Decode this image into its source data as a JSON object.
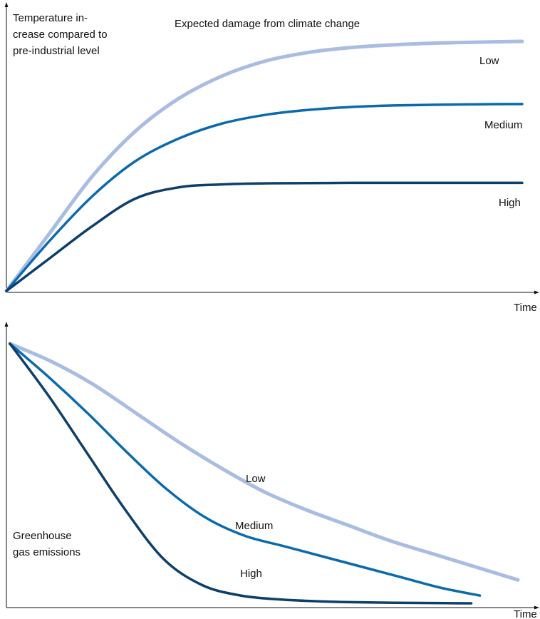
{
  "chart_data": [
    {
      "type": "line",
      "title": "Expected damage from climate change",
      "ylabel_lines": [
        "Temperature in-",
        "crease compared to",
        "pre-industrial level"
      ],
      "xlabel": "Time",
      "grid": false,
      "x": [
        0,
        1,
        2,
        3,
        4,
        5,
        6,
        7,
        8,
        9,
        10,
        11,
        12
      ],
      "series": [
        {
          "name": "Low",
          "color": "#a9bde3",
          "width": 5,
          "values": [
            0,
            0.23,
            0.46,
            0.64,
            0.77,
            0.86,
            0.92,
            0.955,
            0.975,
            0.986,
            0.993,
            0.997,
            1.0
          ]
        },
        {
          "name": "Medium",
          "color": "#0a6aad",
          "width": 3.5,
          "values": [
            0,
            0.2,
            0.38,
            0.52,
            0.61,
            0.67,
            0.705,
            0.725,
            0.737,
            0.743,
            0.746,
            0.748,
            0.749
          ]
        },
        {
          "name": "High",
          "color": "#0d3f6b",
          "width": 3.5,
          "values": [
            0,
            0.13,
            0.26,
            0.37,
            0.415,
            0.427,
            0.431,
            0.432,
            0.433,
            0.433,
            0.433,
            0.433,
            0.433
          ]
        }
      ]
    },
    {
      "type": "line",
      "title": "",
      "ylabel_lines": [
        "Greenhouse",
        "gas emissions"
      ],
      "xlabel": "Time",
      "grid": false,
      "x": [
        0,
        1,
        2,
        3,
        4,
        5,
        6,
        7,
        8,
        9,
        10,
        11,
        12
      ],
      "series": [
        {
          "name": "Low",
          "color": "#a9bde3",
          "width": 5,
          "values": [
            1.0,
            0.93,
            0.84,
            0.73,
            0.62,
            0.52,
            0.43,
            0.36,
            0.3,
            0.24,
            0.19,
            0.14,
            0.09
          ],
          "xmax": 12
        },
        {
          "name": "Medium",
          "color": "#0a6aad",
          "width": 3.5,
          "values": [
            1.0,
            0.87,
            0.73,
            0.58,
            0.44,
            0.33,
            0.26,
            0.22,
            0.18,
            0.14,
            0.1,
            0.06,
            0.03
          ],
          "xmax": 11.1
        },
        {
          "name": "High",
          "color": "#0d3f6b",
          "width": 3.5,
          "values": [
            1.0,
            0.8,
            0.58,
            0.36,
            0.17,
            0.07,
            0.03,
            0.015,
            0.008,
            0.004,
            0.002,
            0.001,
            0.0
          ],
          "xmax": 10.9
        }
      ]
    }
  ]
}
